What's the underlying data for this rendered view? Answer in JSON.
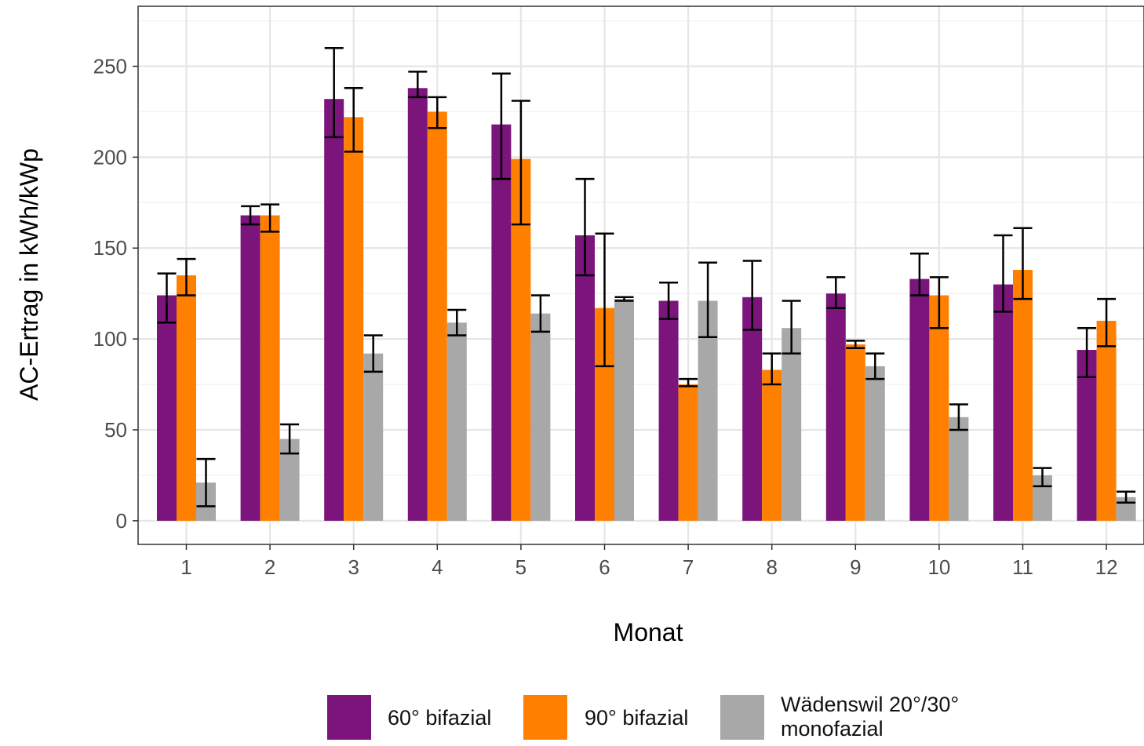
{
  "chart_data": {
    "type": "bar",
    "title": "",
    "xlabel": "Monat",
    "ylabel": "AC-Ertrag in kWh/kWp",
    "categories": [
      "1",
      "2",
      "3",
      "4",
      "5",
      "6",
      "7",
      "8",
      "9",
      "10",
      "11",
      "12"
    ],
    "ylim": [
      -13,
      283
    ],
    "y_ticks": [
      0,
      50,
      100,
      150,
      200,
      250
    ],
    "grid": true,
    "legend_position": "bottom",
    "series": [
      {
        "name": "60° bifazial",
        "color": "#7B147B",
        "values": [
          124,
          168,
          232,
          238,
          218,
          157,
          121,
          123,
          125,
          133,
          130,
          94
        ],
        "error_low": [
          109,
          163,
          211,
          233,
          188,
          135,
          111,
          105,
          117,
          124,
          115,
          79
        ],
        "error_high": [
          136,
          173,
          260,
          247,
          246,
          188,
          131,
          143,
          134,
          147,
          157,
          106
        ]
      },
      {
        "name": "90° bifazial",
        "color": "#FF8000",
        "values": [
          135,
          168,
          222,
          225,
          199,
          117,
          75,
          83,
          97,
          124,
          138,
          110
        ],
        "error_low": [
          124,
          159,
          203,
          216,
          163,
          85,
          74,
          75,
          95,
          106,
          122,
          96
        ],
        "error_high": [
          144,
          174,
          238,
          233,
          231,
          158,
          78,
          92,
          99,
          134,
          161,
          122
        ]
      },
      {
        "name": "Wädenswil 20°/30° monofazial",
        "color": "#A8A8A8",
        "values": [
          21,
          45,
          92,
          109,
          114,
          122,
          121,
          106,
          85,
          57,
          25,
          13
        ],
        "error_low": [
          8,
          37,
          82,
          102,
          104,
          121,
          101,
          92,
          78,
          50,
          19,
          10
        ],
        "error_high": [
          34,
          53,
          102,
          116,
          124,
          123,
          142,
          121,
          92,
          64,
          29,
          16
        ]
      }
    ]
  }
}
